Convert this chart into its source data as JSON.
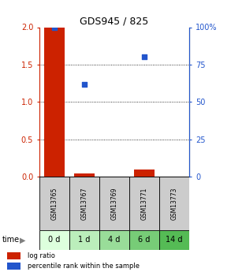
{
  "title": "GDS945 / 825",
  "samples": [
    "GSM13765",
    "GSM13767",
    "GSM13769",
    "GSM13771",
    "GSM13773"
  ],
  "time_labels": [
    "0 d",
    "1 d",
    "4 d",
    "6 d",
    "14 d"
  ],
  "log_ratio": [
    2.0,
    0.04,
    0.0,
    0.1,
    0.0
  ],
  "percentile_rank": [
    100.0,
    62.0,
    null,
    80.0,
    null
  ],
  "left_ylim": [
    0,
    2
  ],
  "right_ylim": [
    0,
    100
  ],
  "left_yticks": [
    0,
    0.5,
    1.0,
    1.5,
    2.0
  ],
  "right_yticks": [
    0,
    25,
    50,
    75,
    100
  ],
  "right_yticklabels": [
    "0",
    "25",
    "50",
    "75",
    "100%"
  ],
  "bar_color": "#cc2200",
  "scatter_color": "#2255cc",
  "sample_box_color": "#cccccc",
  "time_box_colors": [
    "#ddffdd",
    "#bbeebb",
    "#99dd99",
    "#77cc77",
    "#55bb55"
  ],
  "left_axis_color": "#cc2200",
  "right_axis_color": "#2255cc",
  "legend_red_label": "log ratio",
  "legend_blue_label": "percentile rank within the sample",
  "bar_width": 0.7
}
